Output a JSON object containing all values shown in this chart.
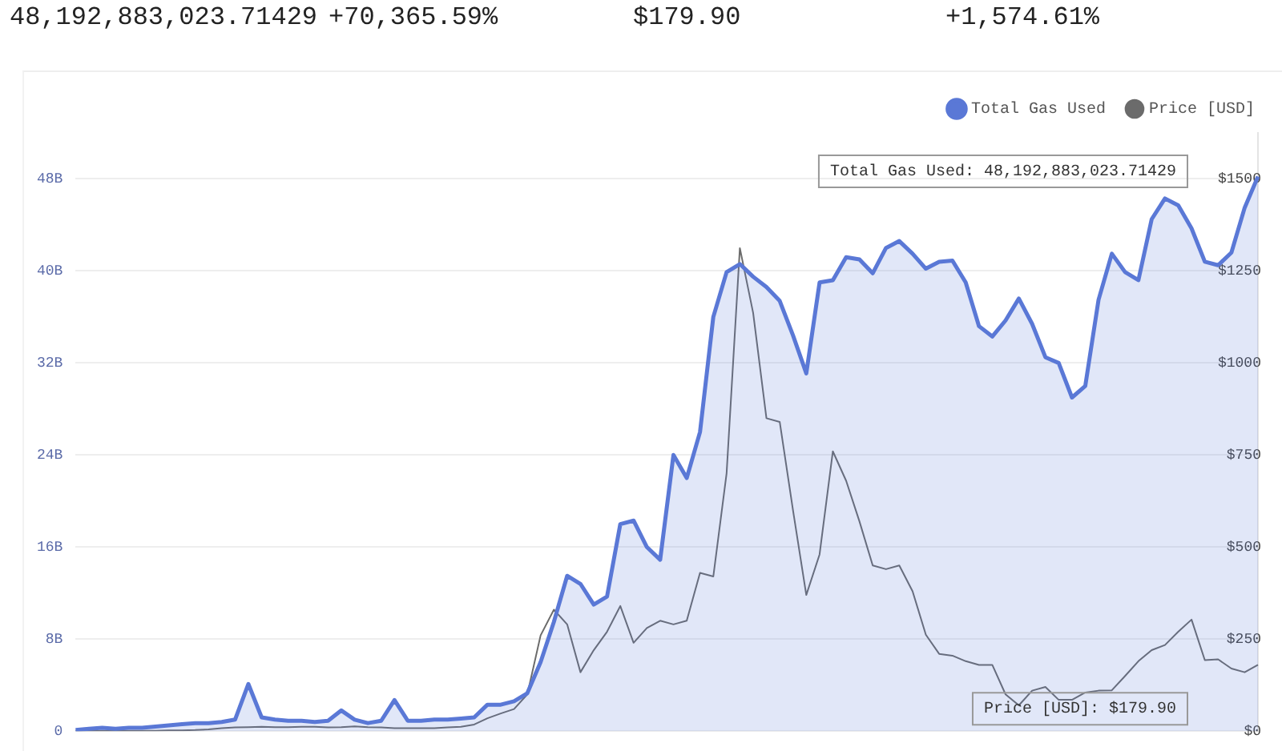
{
  "chart_data": {
    "type": "line",
    "categories": [
      null,
      null,
      null,
      null,
      null,
      null,
      null,
      null,
      null,
      null,
      null,
      null,
      null,
      null,
      null,
      null,
      null,
      null,
      null,
      null,
      null,
      null,
      null,
      null,
      null,
      null,
      null,
      null,
      null,
      null,
      null,
      null,
      null,
      null,
      null,
      null,
      null,
      null,
      null,
      null,
      null,
      null,
      null,
      null,
      null,
      null,
      null,
      null,
      null,
      null,
      null,
      null,
      null,
      null,
      null,
      null,
      null,
      null,
      null,
      null,
      null,
      null,
      null,
      null,
      null,
      null,
      null,
      null,
      null,
      null,
      null,
      null,
      null,
      null,
      null,
      null,
      null,
      null,
      null,
      null,
      null,
      null,
      null,
      null,
      null,
      null,
      null,
      null,
      null,
      null
    ],
    "series": [
      {
        "name": "Total Gas Used",
        "type": "area",
        "color": "#5a78d6",
        "values": [
          0.1,
          0.2,
          0.3,
          0.2,
          0.3,
          0.3,
          0.4,
          0.5,
          0.6,
          0.7,
          0.7,
          0.8,
          1.0,
          4.1,
          1.2,
          1.0,
          0.9,
          0.9,
          0.8,
          0.9,
          1.8,
          1.0,
          0.7,
          0.9,
          2.7,
          0.9,
          0.9,
          1.0,
          1.0,
          1.1,
          1.2,
          2.3,
          2.3,
          2.6,
          3.3,
          6.0,
          9.5,
          13.5,
          12.8,
          11.0,
          11.7,
          18.0,
          18.3,
          16.0,
          14.9,
          24.0,
          22.0,
          26.0,
          36.0,
          39.9,
          40.6,
          39.5,
          38.6,
          37.4,
          34.4,
          31.1,
          39.0,
          39.2,
          41.2,
          41.0,
          39.8,
          42.0,
          42.6,
          41.5,
          40.2,
          40.8,
          40.9,
          39.0,
          35.2,
          34.3,
          35.7,
          37.6,
          35.4,
          32.5,
          32.0,
          29.0,
          30.0,
          37.5,
          41.5,
          39.9,
          39.2,
          44.5,
          46.3,
          45.7,
          43.7,
          40.8,
          40.5,
          41.6,
          45.5,
          48.2
        ]
      },
      {
        "name": "Price [USD]",
        "type": "line",
        "axis": "y2",
        "color": "#6b6b6b",
        "values": [
          1,
          1,
          1,
          1,
          1,
          1,
          1,
          2,
          2,
          3,
          5,
          8,
          10,
          11,
          12,
          11,
          11,
          12,
          12,
          10,
          11,
          13,
          11,
          10,
          8,
          8,
          8,
          8,
          10,
          12,
          18,
          35,
          48,
          60,
          100,
          260,
          330,
          290,
          160,
          220,
          270,
          340,
          240,
          280,
          300,
          290,
          300,
          430,
          420,
          700,
          1312,
          1136,
          850,
          840,
          600,
          370,
          480,
          760,
          680,
          570,
          450,
          440,
          450,
          380,
          262,
          210,
          205,
          190,
          180,
          180,
          100,
          70,
          110,
          120,
          85,
          85,
          105,
          110,
          111,
          150,
          190,
          220,
          234,
          270,
          303,
          193,
          195,
          170,
          160,
          180
        ]
      }
    ],
    "ylim": [
      0,
      52
    ],
    "yticks": [
      {
        "value": 0,
        "label": "0"
      },
      {
        "value": 8,
        "label": "8B"
      },
      {
        "value": 16,
        "label": "16B"
      },
      {
        "value": 24,
        "label": "24B"
      },
      {
        "value": 32,
        "label": "32B"
      },
      {
        "value": 40,
        "label": "40B"
      },
      {
        "value": 48,
        "label": "48B"
      }
    ],
    "y2lim": [
      0,
      1625
    ],
    "y2ticks": [
      {
        "value": 0,
        "label": "$0"
      },
      {
        "value": 250,
        "label": "$250"
      },
      {
        "value": 500,
        "label": "$500"
      },
      {
        "value": 750,
        "label": "$750"
      },
      {
        "value": 1000,
        "label": "$1000"
      },
      {
        "value": 1250,
        "label": "$1250"
      },
      {
        "value": 1500,
        "label": "$1500"
      }
    ],
    "grid": "y",
    "legend": "top right",
    "marker": "none",
    "annotations": [
      "48,192,883,023.71429",
      "+70,365.59%",
      "$179.90",
      "+1,574.61%",
      "Total Gas Used: 48,192,883,023.71429",
      "Price [USD]: $179.90"
    ]
  }
}
